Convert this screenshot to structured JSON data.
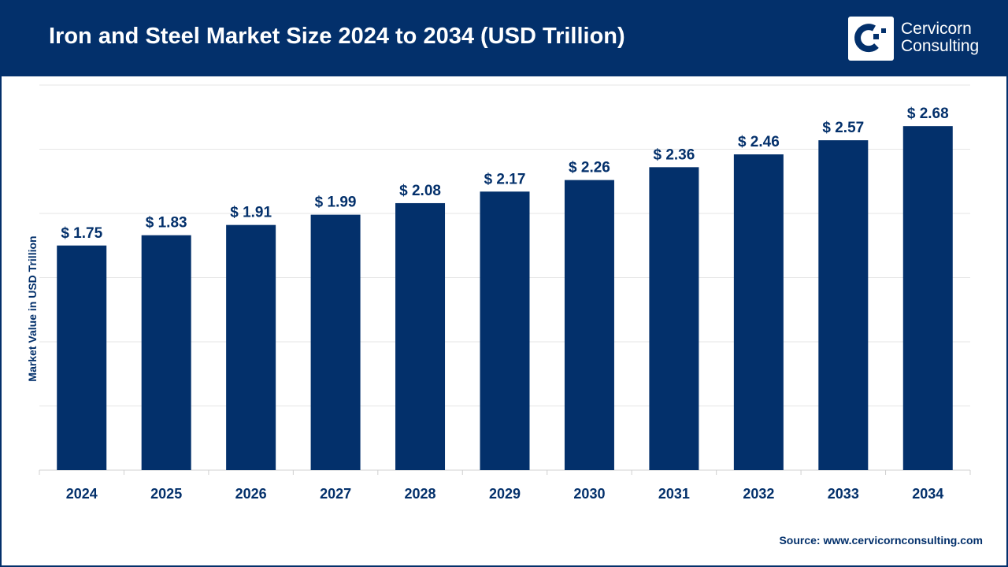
{
  "title": "Iron and Steel Market Size 2024 to 2034 (USD Trillion)",
  "logo": {
    "line1": "Cervicorn",
    "line2": "Consulting"
  },
  "source": "Source: www.cervicornconsulting.com",
  "colors": {
    "bar": "#03306b",
    "header": "#03306b",
    "grid": "#e6e6e6"
  },
  "chart_data": {
    "type": "bar",
    "title": "Iron and Steel Market Size 2024 to 2034 (USD Trillion)",
    "xlabel": "",
    "ylabel": "Market Value in USD Trillion",
    "categories": [
      "2024",
      "2025",
      "2026",
      "2027",
      "2028",
      "2029",
      "2030",
      "2031",
      "2032",
      "2033",
      "2034"
    ],
    "values": [
      1.75,
      1.83,
      1.91,
      1.99,
      2.08,
      2.17,
      2.26,
      2.36,
      2.46,
      2.57,
      2.68
    ],
    "data_labels": [
      "$ 1.75",
      "$ 1.83",
      "$ 1.91",
      "$ 1.99",
      "$ 2.08",
      "$ 2.17",
      "$ 2.26",
      "$ 2.36",
      "$ 2.46",
      "$ 2.57",
      "$ 2.68"
    ],
    "ylim": [
      0,
      3
    ],
    "ytick_step": 0.5,
    "ytick_labels_visible": false,
    "grid": true,
    "legend": "none"
  }
}
